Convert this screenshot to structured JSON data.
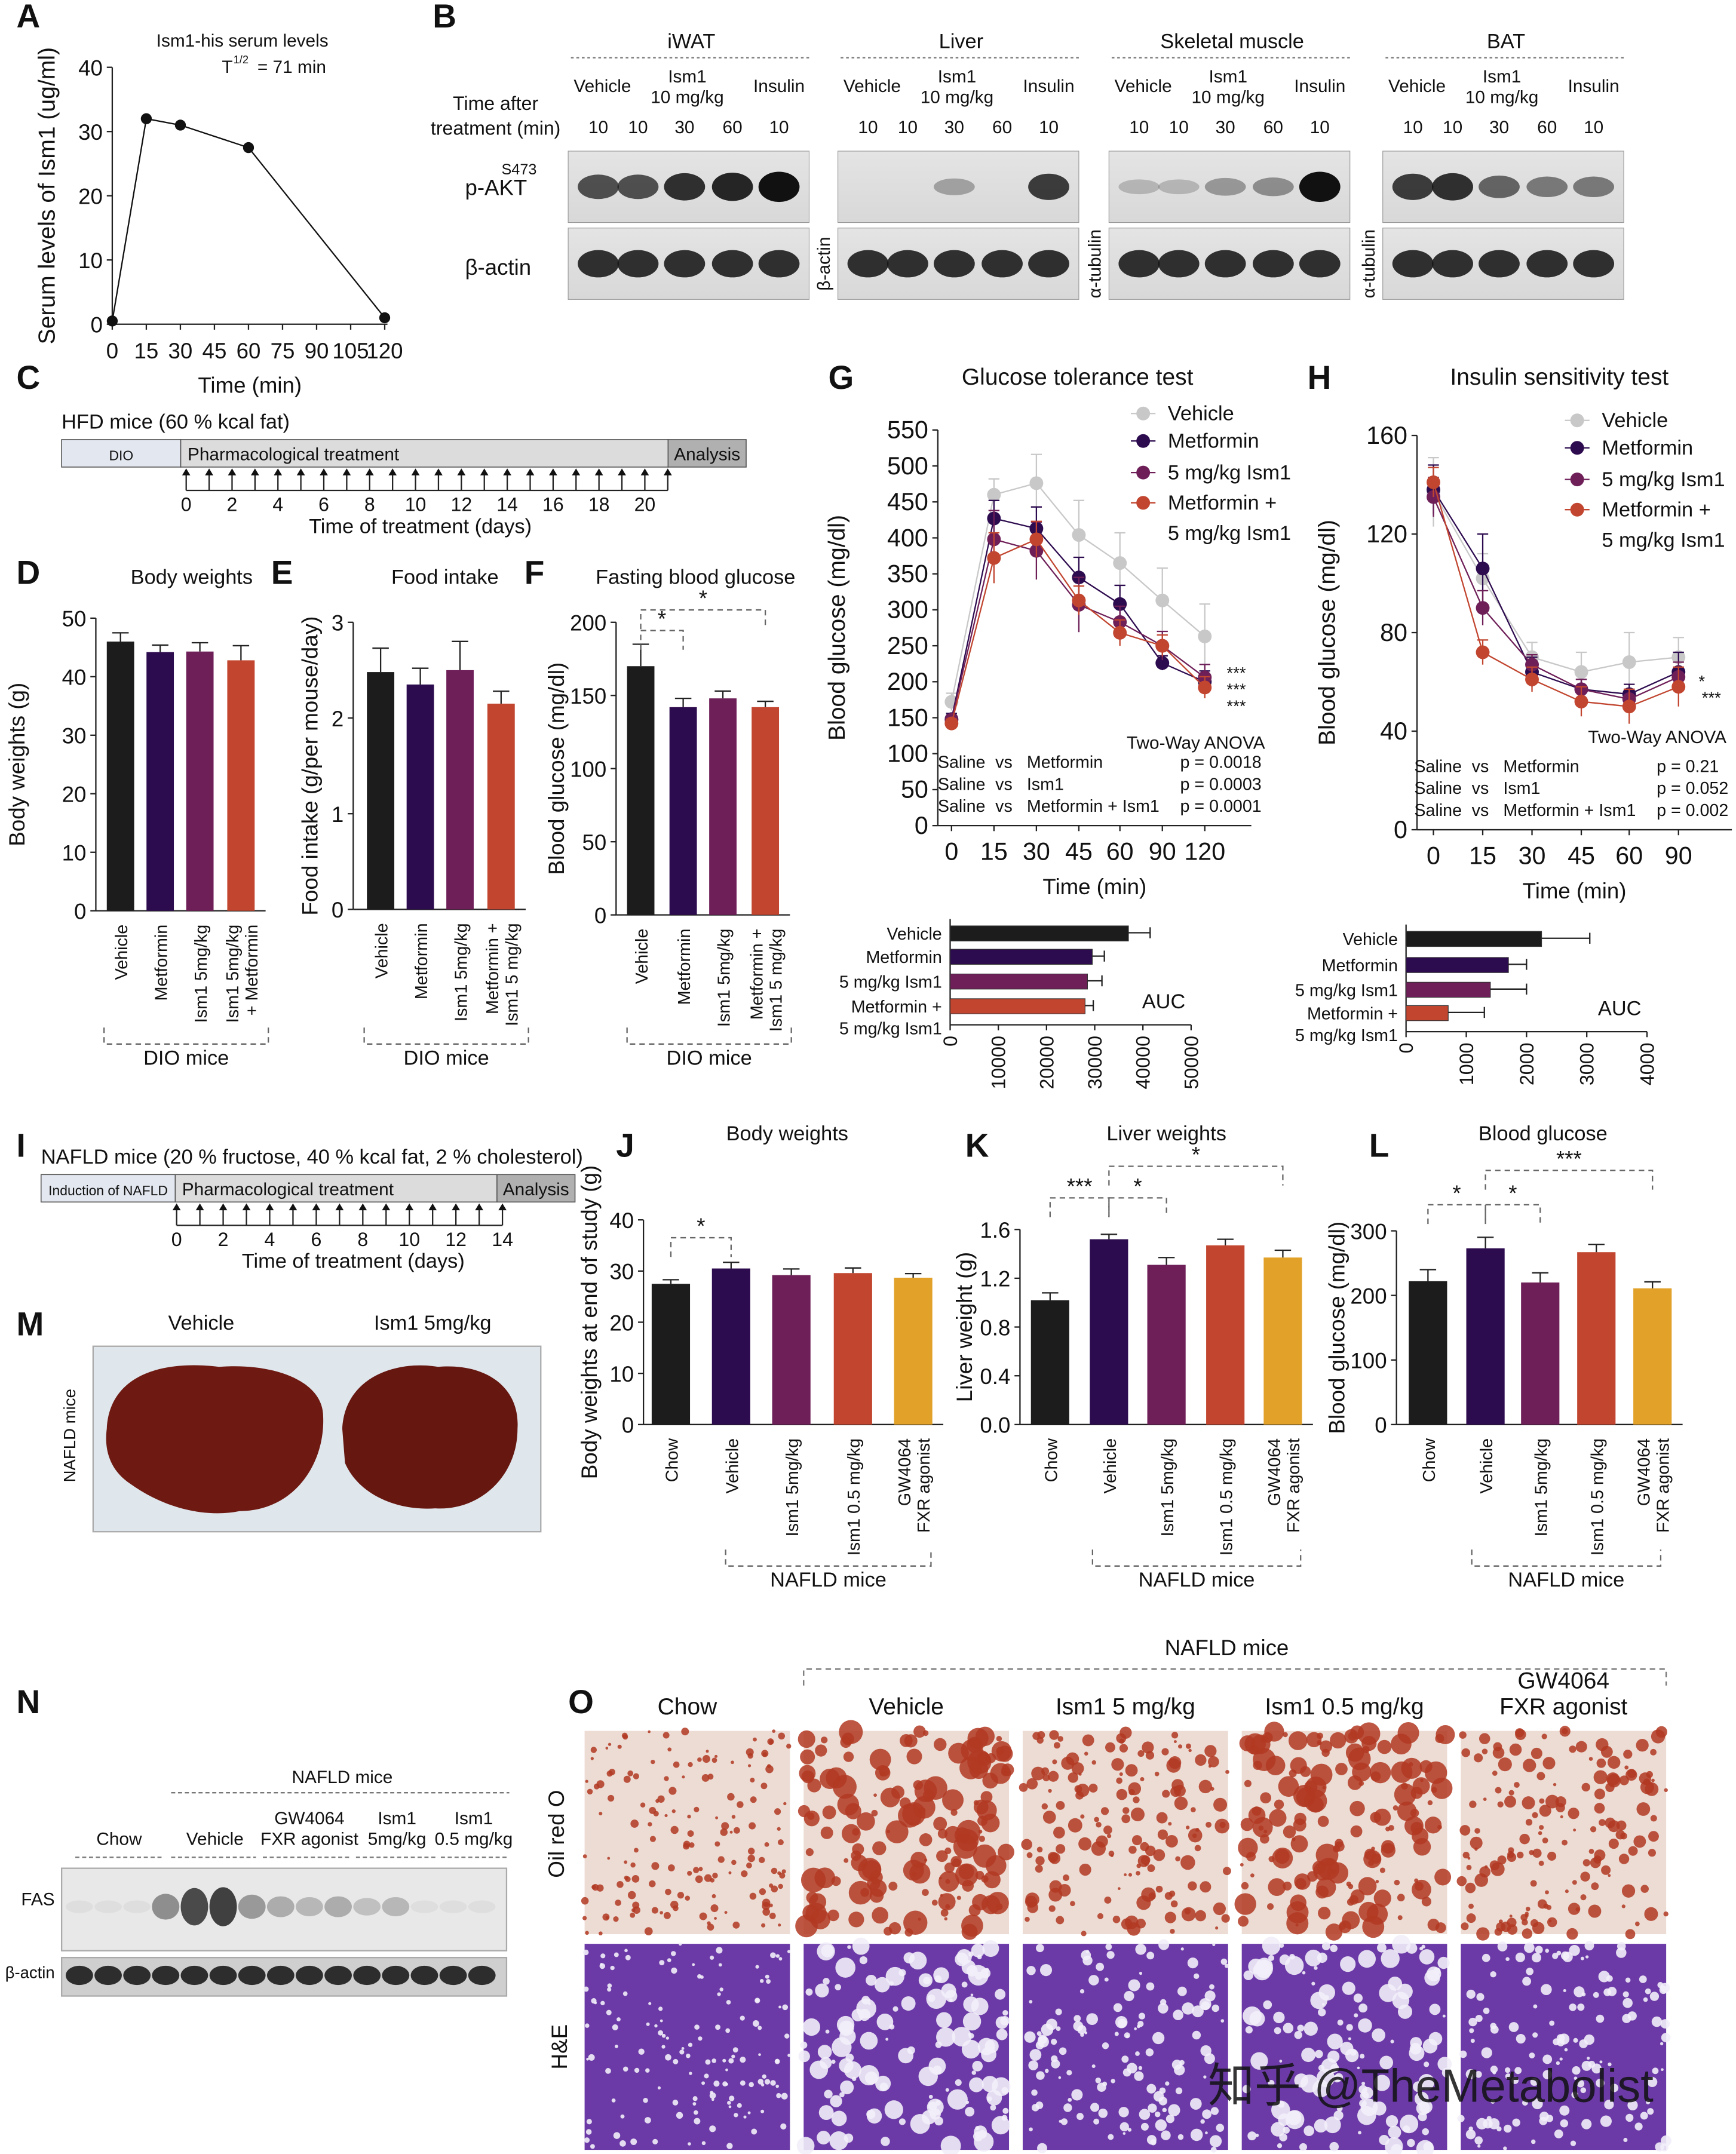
{
  "colors": {
    "vehicle_bar": "#1c1c1c",
    "metformin": "#2d0b4f",
    "ism1": "#6e1f58",
    "combo": "#c1452f",
    "fxr": "#e2a22a",
    "vehicle_line": "#c8c8c8"
  },
  "panel_letters": [
    "A",
    "B",
    "C",
    "D",
    "E",
    "F",
    "G",
    "H",
    "I",
    "J",
    "K",
    "L",
    "M",
    "N",
    "O"
  ],
  "chart_data": [
    {
      "id": "A",
      "type": "line",
      "title": "Ism1-his serum levels",
      "subtitle_main": "T",
      "subtitle_sup": "1/2",
      "subtitle_rest": "= 71 min",
      "xlabel": "Time (min)",
      "ylabel": "Serum levels of Ism1 (ug/ml)",
      "xlim": [
        0,
        120
      ],
      "ylim": [
        0,
        40
      ],
      "xticks": [
        0,
        15,
        30,
        45,
        60,
        75,
        90,
        105,
        120
      ],
      "yticks": [
        0,
        10,
        20,
        30,
        40
      ],
      "series": [
        {
          "name": "Ism1-his",
          "x": [
            0,
            15,
            30,
            60,
            120
          ],
          "values": [
            0.5,
            32,
            31,
            27.5,
            1
          ]
        }
      ]
    },
    {
      "id": "D",
      "type": "bar",
      "title": "Body weights",
      "ylabel": "Body weights (g)",
      "group_label": "DIO mice",
      "ylim": [
        0,
        50
      ],
      "yticks": [
        0,
        10,
        20,
        30,
        40,
        50
      ],
      "categories": [
        [
          "Vehicle"
        ],
        [
          "Metformin"
        ],
        [
          "Ism1 5mg/kg"
        ],
        [
          "Ism1 5mg/kg",
          "+ Metformin"
        ]
      ],
      "values": [
        46,
        44.2,
        44.3,
        42.8
      ],
      "errors": [
        1.5,
        1.2,
        1.5,
        2.5
      ]
    },
    {
      "id": "E",
      "type": "bar",
      "title": "Food intake",
      "ylabel": "Food intake (g/per mouse/day)",
      "group_label": "DIO mice",
      "ylim": [
        0,
        3
      ],
      "yticks": [
        0,
        1,
        2,
        3
      ],
      "categories": [
        [
          "Vehicle"
        ],
        [
          "Metformin"
        ],
        [
          "Ism1 5mg/kg"
        ],
        [
          "Metformin +",
          "Ism1 5 mg/kg"
        ]
      ],
      "values": [
        2.48,
        2.35,
        2.5,
        2.15
      ],
      "errors": [
        0.25,
        0.17,
        0.3,
        0.13
      ]
    },
    {
      "id": "F",
      "type": "bar",
      "title": "Fasting blood glucose",
      "ylabel": "Blood glucose (mg/dl)",
      "group_label": "DIO mice",
      "ylim": [
        0,
        200
      ],
      "yticks": [
        0,
        50,
        100,
        150,
        200
      ],
      "categories": [
        [
          "Vehicle"
        ],
        [
          "Metformin"
        ],
        [
          "Ism1 5mg/kg"
        ],
        [
          "Metformin +",
          "Ism1 5 mg/kg"
        ]
      ],
      "values": [
        170,
        142,
        148,
        142
      ],
      "errors": [
        15,
        6,
        5,
        4
      ],
      "significance": [
        {
          "from": 0,
          "to": 1,
          "label": "*"
        },
        {
          "from": 0,
          "to": 3,
          "label": "*"
        }
      ]
    },
    {
      "id": "G",
      "type": "line",
      "title": "Glucose tolerance test",
      "xlabel": "Time (min)",
      "ylabel": "Blood glucose (mg/dl)",
      "ylim": [
        0,
        550
      ],
      "yticks": [
        0,
        50,
        100,
        150,
        200,
        250,
        300,
        350,
        400,
        450,
        500,
        550
      ],
      "xticks": [
        0,
        15,
        30,
        45,
        60,
        90,
        120
      ],
      "series": [
        {
          "name": "Vehicle",
          "values": [
            172,
            460,
            476,
            404,
            365,
            313,
            263
          ],
          "errors": [
            12,
            22,
            40,
            48,
            42,
            45,
            45
          ]
        },
        {
          "name": "Metformin",
          "values": [
            148,
            427,
            413,
            345,
            308,
            226,
            200
          ],
          "errors": [
            8,
            25,
            30,
            28,
            26,
            10,
            15
          ]
        },
        {
          "name": "5 mg/kg Ism1",
          "values": [
            147,
            398,
            382,
            307,
            283,
            250,
            206
          ],
          "errors": [
            6,
            40,
            40,
            38,
            22,
            20,
            18
          ]
        },
        {
          "name": "Metformin + 5 mg/kg Ism1",
          "legend_lines": [
            "Metformin +",
            "5 mg/kg Ism1"
          ],
          "values": [
            142,
            372,
            398,
            313,
            268,
            250,
            192
          ],
          "errors": [
            6,
            35,
            25,
            20,
            18,
            15,
            15
          ]
        }
      ],
      "stars": [
        "***",
        "***",
        "***"
      ],
      "stats": {
        "title": "Two-Way ANOVA",
        "rows": [
          [
            "Saline",
            "vs",
            "Metformin",
            "p = 0.0018"
          ],
          [
            "Saline",
            "vs",
            "Ism1",
            "p = 0.0003"
          ],
          [
            "Saline",
            "vs",
            "Metformin + Ism1",
            "p = 0.0001"
          ]
        ]
      }
    },
    {
      "id": "G_AUC",
      "type": "bar",
      "orientation": "horizontal",
      "label": "AUC",
      "xlim": [
        0,
        50000
      ],
      "xticks": [
        0,
        10000,
        20000,
        30000,
        40000,
        50000
      ],
      "categories": [
        [
          "Vehicle"
        ],
        [
          "Metformin"
        ],
        [
          "5 mg/kg Ism1"
        ],
        [
          "Metformin +",
          "5 mg/kg Ism1"
        ]
      ],
      "values": [
        37000,
        29500,
        28500,
        28000
      ],
      "errors": [
        4500,
        2500,
        3000,
        1700
      ]
    },
    {
      "id": "H",
      "type": "line",
      "title": "Insulin sensitivity test",
      "xlabel": "Time (min)",
      "ylabel": "Blood glucose (mg/dl)",
      "ylim": [
        0,
        160
      ],
      "yticks": [
        0,
        40,
        80,
        120,
        160
      ],
      "xticks": [
        0,
        15,
        30,
        45,
        60,
        90
      ],
      "series": [
        {
          "name": "Vehicle",
          "values": [
            137,
            102,
            70,
            64,
            68,
            70
          ],
          "errors": [
            14,
            10,
            6,
            8,
            12,
            8
          ]
        },
        {
          "name": "Metformin",
          "values": [
            138,
            106,
            64,
            57,
            55,
            64
          ],
          "errors": [
            10,
            14,
            6,
            4,
            4,
            8
          ]
        },
        {
          "name": "5 mg/kg Ism1",
          "values": [
            135,
            90,
            67,
            57,
            53,
            62
          ],
          "errors": [
            8,
            7,
            4,
            4,
            4,
            6
          ]
        },
        {
          "name": "Metformin + 5 mg/kg Ism1",
          "legend_lines": [
            "Metformin +",
            "5 mg/kg Ism1"
          ],
          "values": [
            141,
            72,
            61,
            52,
            50,
            58
          ],
          "errors": [
            6,
            5,
            5,
            6,
            7,
            8
          ]
        }
      ],
      "stars": [
        "*",
        "***"
      ],
      "stats": {
        "title": "Two-Way ANOVA",
        "rows": [
          [
            "Saline",
            "vs",
            "Metformin",
            "p = 0.21"
          ],
          [
            "Saline",
            "vs",
            "Ism1",
            "p = 0.052"
          ],
          [
            "Saline",
            "vs",
            "Metformin + Ism1",
            "p = 0.002"
          ]
        ]
      }
    },
    {
      "id": "H_AUC",
      "type": "bar",
      "orientation": "horizontal",
      "label": "AUC",
      "xlim": [
        0,
        4000
      ],
      "xticks": [
        0,
        1000,
        2000,
        3000,
        4000
      ],
      "categories": [
        [
          "Vehicle"
        ],
        [
          "Metformin"
        ],
        [
          "5 mg/kg Ism1"
        ],
        [
          "Metformin +",
          "5 mg/kg Ism1"
        ]
      ],
      "values": [
        2250,
        1700,
        1400,
        700
      ],
      "errors": [
        800,
        300,
        600,
        600
      ]
    },
    {
      "id": "J",
      "type": "bar",
      "title": "Body weights",
      "ylabel": "Body weights at end of study (g)",
      "group_label": "NAFLD mice",
      "ylim": [
        0,
        40
      ],
      "yticks": [
        0,
        10,
        20,
        30,
        40
      ],
      "categories": [
        [
          "Chow"
        ],
        [
          "Vehicle"
        ],
        [
          "Ism1 5mg/kg"
        ],
        [
          "Ism1 0.5 mg/kg"
        ],
        [
          "GW4064",
          "FXR agonist"
        ]
      ],
      "values": [
        27.5,
        30.5,
        29.2,
        29.6,
        28.7
      ],
      "errors": [
        0.8,
        1.2,
        1.2,
        1,
        0.8
      ],
      "significance": [
        {
          "from": 0,
          "to": 1,
          "label": "*"
        }
      ]
    },
    {
      "id": "K",
      "type": "bar",
      "title": "Liver weights",
      "ylabel": "Liver weight (g)",
      "group_label": "NAFLD mice",
      "ylim": [
        0,
        1.6
      ],
      "yticks": [
        "0.0",
        "0.4",
        "0.8",
        "1.2",
        "1.6"
      ],
      "categories": [
        [
          "Chow"
        ],
        [
          "Vehicle"
        ],
        [
          "Ism1 5mg/kg"
        ],
        [
          "Ism1 0.5 mg/kg"
        ],
        [
          "GW4064",
          "FXR agonist"
        ]
      ],
      "values": [
        1.02,
        1.52,
        1.31,
        1.47,
        1.37
      ],
      "errors": [
        0.06,
        0.04,
        0.06,
        0.05,
        0.06
      ],
      "significance": [
        {
          "from": 0,
          "to": 1,
          "label": "***"
        },
        {
          "from": 1,
          "to": 2,
          "label": "*"
        },
        {
          "from": 1,
          "to": 4,
          "label": "*"
        }
      ]
    },
    {
      "id": "L",
      "type": "bar",
      "title": "Blood glucose",
      "ylabel": "Blood glucose (mg/dl)",
      "group_label": "NAFLD mice",
      "ylim": [
        0,
        300
      ],
      "yticks": [
        0,
        100,
        200,
        300
      ],
      "categories": [
        [
          "Chow"
        ],
        [
          "Vehicle"
        ],
        [
          "Ism1 5mg/kg"
        ],
        [
          "Ism1 0.5 mg/kg"
        ],
        [
          "GW4064",
          "FXR agonist"
        ]
      ],
      "values": [
        222,
        273,
        220,
        267,
        211
      ],
      "errors": [
        18,
        17,
        15,
        12,
        10
      ],
      "significance": [
        {
          "from": 0,
          "to": 1,
          "label": "*"
        },
        {
          "from": 1,
          "to": 2,
          "label": "*"
        },
        {
          "from": 1,
          "to": 4,
          "label": "***"
        }
      ]
    }
  ],
  "panel_b": {
    "row_header": [
      "Time after",
      "treatment (min)"
    ],
    "tissues": [
      "iWAT",
      "Liver",
      "Skeletal muscle",
      "BAT"
    ],
    "groups": [
      "Vehicle",
      "Ism1",
      "10 mg/kg",
      "Insulin"
    ],
    "times": [
      "10",
      "10",
      "30",
      "60",
      "10"
    ],
    "pakt_label": "p-AKT",
    "pakt_sup": "S473",
    "actin_label": "β-actin",
    "loading_controls": [
      "β-actin",
      "α-tubulin",
      "α-tubulin"
    ]
  },
  "panel_c": {
    "title": "HFD mice (60 % kcal fat)",
    "segments": [
      "DIO",
      "Pharmacological treatment",
      "Analysis"
    ],
    "ticks": [
      "0",
      "2",
      "4",
      "6",
      "8",
      "10",
      "12",
      "14",
      "16",
      "18",
      "20"
    ],
    "xlabel": "Time of treatment (days)"
  },
  "panel_i": {
    "title": "NAFLD mice (20 % fructose, 40 % kcal fat, 2 % cholesterol)",
    "segments": [
      "Induction of NAFLD",
      "Pharmacological treatment",
      "Analysis"
    ],
    "ticks": [
      "0",
      "2",
      "4",
      "6",
      "8",
      "10",
      "12",
      "14"
    ],
    "xlabel": "Time of treatment (days)"
  },
  "panel_m": {
    "columns": [
      "Vehicle",
      "Ism1 5mg/kg"
    ],
    "row_label": "NAFLD mice"
  },
  "panel_n": {
    "header": "NAFLD mice",
    "groups": [
      [
        "Chow"
      ],
      [
        "Vehicle"
      ],
      [
        "GW4064",
        "FXR agonist"
      ],
      [
        "Ism1",
        "5mg/kg"
      ],
      [
        "Ism1",
        "0.5 mg/kg"
      ]
    ],
    "rows": [
      "FAS",
      "β-actin"
    ]
  },
  "panel_o": {
    "header": "NAFLD mice",
    "columns": [
      [
        "Chow"
      ],
      [
        "Vehicle"
      ],
      [
        "Ism1 5 mg/kg"
      ],
      [
        "Ism1 0.5 mg/kg"
      ],
      [
        "GW4064",
        "FXR agonist"
      ]
    ],
    "rows": [
      "Oil red O",
      "H&E"
    ]
  },
  "watermark": "知乎 @TheMetabolist"
}
